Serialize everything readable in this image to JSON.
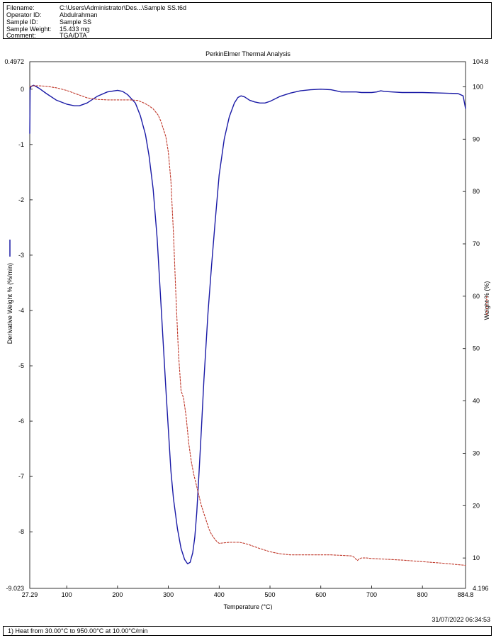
{
  "header": {
    "rows": [
      {
        "label": "Filename:",
        "value": "C:\\Users\\Administrator\\Des...\\Sample SS.t6d"
      },
      {
        "label": "Operator ID:",
        "value": "Abdulrahman"
      },
      {
        "label": "Sample ID:",
        "value": "Sample SS"
      },
      {
        "label": "Sample Weight:",
        "value": "15.433 mg"
      },
      {
        "label": "Comment:",
        "value": "TGA/DTA"
      }
    ]
  },
  "chart_data": {
    "type": "line",
    "title": "PerkinElmer Thermal Analysis",
    "xlabel": "Temperature (°C)",
    "ylabel_left": "Derivative Weight % (%/min)",
    "ylabel_right": "Weight % (%)",
    "xlim": [
      27.29,
      884.8
    ],
    "ylim_left": [
      -9.023,
      0.4972
    ],
    "ylim_right": [
      4.196,
      104.8
    ],
    "x_ticks": [
      100,
      200,
      300,
      400,
      500,
      600,
      700,
      800
    ],
    "x_tick_labels": [
      "27.29",
      "100",
      "200",
      "300",
      "400",
      "500",
      "600",
      "700",
      "800",
      "884.8"
    ],
    "y_left_ticks": [
      0,
      -1,
      -2,
      -3,
      -4,
      -5,
      -6,
      -7,
      -8
    ],
    "y_left_tick_labels": [
      "0.4972",
      "0",
      "-1",
      "-2",
      "-3",
      "-4",
      "-5",
      "-6",
      "-7",
      "-8",
      "-9.023"
    ],
    "y_right_ticks": [
      100,
      90,
      80,
      70,
      60,
      50,
      40,
      30,
      20,
      10
    ],
    "y_right_tick_labels": [
      "104.8",
      "100",
      "90",
      "80",
      "70",
      "60",
      "50",
      "40",
      "30",
      "20",
      "10",
      "4.196"
    ],
    "grid": false,
    "series": [
      {
        "axis": "left",
        "color": "#1a1aa6",
        "dash": "solid",
        "x": [
          27.3,
          28,
          30,
          35,
          45,
          60,
          80,
          100,
          115,
          125,
          140,
          160,
          180,
          200,
          210,
          220,
          235,
          245,
          255,
          262,
          270,
          278,
          285,
          290,
          295,
          300,
          305,
          310,
          318,
          325,
          332,
          338,
          343,
          348,
          352,
          356,
          360,
          365,
          370,
          378,
          385,
          392,
          400,
          410,
          420,
          430,
          437,
          443,
          450,
          460,
          470,
          480,
          490,
          500,
          520,
          540,
          560,
          580,
          600,
          620,
          630,
          640,
          650,
          660,
          670,
          680,
          690,
          700,
          710,
          718,
          725,
          740,
          760,
          800,
          840,
          870,
          880,
          884.8
        ],
        "y": [
          -0.8,
          0.0,
          0.05,
          0.07,
          0.02,
          -0.08,
          -0.2,
          -0.27,
          -0.3,
          -0.3,
          -0.25,
          -0.13,
          -0.05,
          -0.02,
          -0.04,
          -0.1,
          -0.25,
          -0.48,
          -0.82,
          -1.2,
          -1.8,
          -2.7,
          -3.8,
          -4.6,
          -5.4,
          -6.15,
          -6.9,
          -7.4,
          -7.95,
          -8.3,
          -8.5,
          -8.58,
          -8.55,
          -8.38,
          -8.1,
          -7.65,
          -7.0,
          -6.15,
          -5.25,
          -4.05,
          -3.2,
          -2.4,
          -1.55,
          -0.9,
          -0.5,
          -0.25,
          -0.15,
          -0.12,
          -0.14,
          -0.2,
          -0.23,
          -0.25,
          -0.25,
          -0.22,
          -0.13,
          -0.07,
          -0.03,
          -0.01,
          0.0,
          -0.01,
          -0.03,
          -0.05,
          -0.05,
          -0.05,
          -0.05,
          -0.06,
          -0.06,
          -0.06,
          -0.05,
          -0.03,
          -0.04,
          -0.05,
          -0.06,
          -0.06,
          -0.07,
          -0.08,
          -0.12,
          -0.35
        ]
      },
      {
        "axis": "right",
        "color": "#c0392b",
        "dash": "dashed",
        "x": [
          27.3,
          35,
          45,
          60,
          80,
          100,
          120,
          140,
          160,
          180,
          200,
          210,
          225,
          240,
          250,
          260,
          270,
          280,
          285,
          290,
          295,
          300,
          305,
          310,
          315,
          320,
          325,
          330,
          335,
          340,
          345,
          350,
          355,
          360,
          365,
          370,
          375,
          380,
          385,
          390,
          395,
          400,
          410,
          420,
          440,
          450,
          460,
          480,
          500,
          520,
          540,
          560,
          580,
          600,
          620,
          640,
          660,
          665,
          670,
          672,
          675,
          680,
          690,
          700,
          720,
          760,
          800,
          840,
          884.8
        ],
        "y": [
          100.1,
          100.2,
          100.2,
          100.1,
          99.8,
          99.3,
          98.6,
          97.9,
          97.6,
          97.5,
          97.5,
          97.5,
          97.5,
          97.4,
          97.0,
          96.5,
          95.8,
          94.6,
          93.5,
          92.0,
          90.5,
          87.5,
          82.0,
          72.0,
          60.0,
          49.0,
          42.0,
          40.5,
          37.0,
          32.0,
          28.5,
          26.0,
          24.0,
          22.0,
          20.0,
          18.5,
          17.0,
          15.5,
          14.5,
          13.8,
          13.2,
          12.8,
          12.9,
          13.0,
          13.0,
          12.8,
          12.5,
          11.8,
          11.2,
          10.8,
          10.6,
          10.6,
          10.6,
          10.6,
          10.6,
          10.5,
          10.4,
          10.2,
          9.7,
          9.5,
          9.8,
          10.0,
          10.0,
          9.9,
          9.8,
          9.6,
          9.3,
          9.0,
          8.6
        ]
      }
    ]
  },
  "footer": {
    "timestamp": "31/07/2022 06:34:53",
    "method": "1)  Heat from 30.00°C to 950.00°C at 10.00°C/min"
  }
}
